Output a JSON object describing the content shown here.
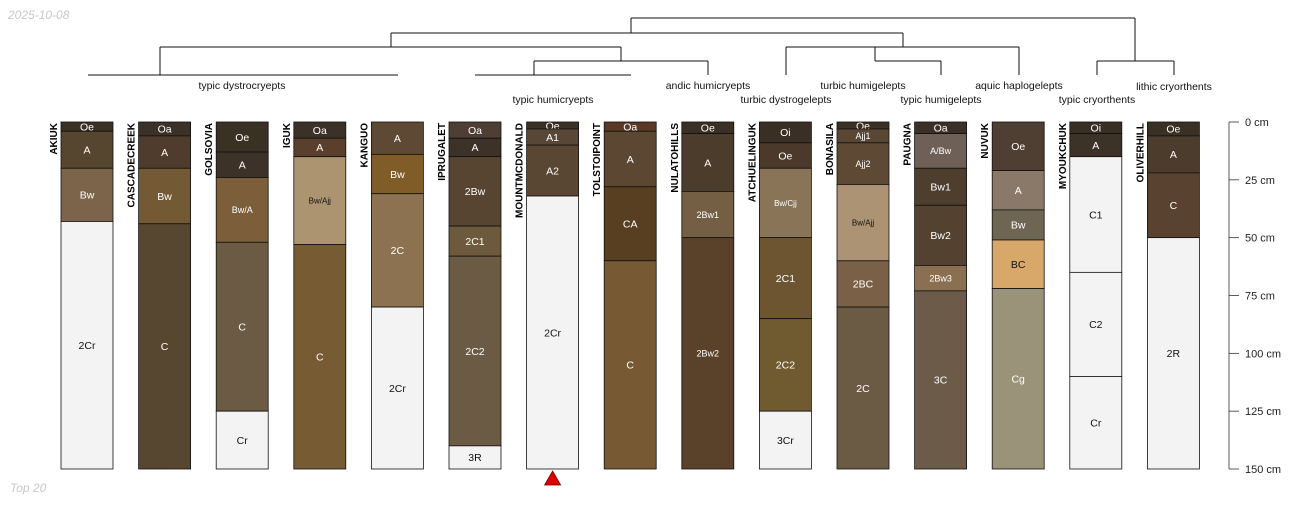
{
  "header": {
    "date": "2025-10-08"
  },
  "footer": {
    "label": "Top 20"
  },
  "chart_data": {
    "type": "soil-profile-sketch",
    "depth_axis": {
      "unit": "cm",
      "range": [
        0,
        150
      ],
      "ticks": [
        0,
        25,
        50,
        75,
        100,
        125,
        150
      ],
      "tick_labels": [
        "0 cm",
        "25 cm",
        "50 cm",
        "75 cm",
        "100 cm",
        "125 cm",
        "150 cm"
      ]
    },
    "profiles": [
      {
        "name": "AKIUK",
        "horizons": [
          {
            "name": "Oe",
            "top": 0,
            "bottom": 4,
            "color": "#3a3024"
          },
          {
            "name": "A",
            "top": 4,
            "bottom": 20,
            "color": "#56462f"
          },
          {
            "name": "Bw",
            "top": 20,
            "bottom": 43,
            "color": "#7b644a"
          },
          {
            "name": "2Cr",
            "top": 43,
            "bottom": 150,
            "color": "#f3f3f3"
          }
        ]
      },
      {
        "name": "CASCADECREEK",
        "horizons": [
          {
            "name": "Oa",
            "top": 0,
            "bottom": 6,
            "color": "#3b3127"
          },
          {
            "name": "A",
            "top": 6,
            "bottom": 20,
            "color": "#4f3c2c"
          },
          {
            "name": "Bw",
            "top": 20,
            "bottom": 44,
            "color": "#735a34"
          },
          {
            "name": "C",
            "top": 44,
            "bottom": 150,
            "color": "#574730"
          }
        ]
      },
      {
        "name": "GOLSOVIA",
        "horizons": [
          {
            "name": "Oe",
            "top": 0,
            "bottom": 13,
            "color": "#3a3024"
          },
          {
            "name": "A",
            "top": 13,
            "bottom": 24,
            "color": "#3d3228"
          },
          {
            "name": "Bw/A",
            "top": 24,
            "bottom": 52,
            "color": "#7c5e3a"
          },
          {
            "name": "C",
            "top": 52,
            "bottom": 125,
            "color": "#6b5b45"
          },
          {
            "name": "Cr",
            "top": 125,
            "bottom": 150,
            "color": "#f3f3f3"
          }
        ]
      },
      {
        "name": "IGUK",
        "horizons": [
          {
            "name": "Oa",
            "top": 0,
            "bottom": 7,
            "color": "#3b3127"
          },
          {
            "name": "A",
            "top": 7,
            "bottom": 15,
            "color": "#5a3f2d"
          },
          {
            "name": "Bw/Ajj",
            "top": 15,
            "bottom": 53,
            "color": "#ad9470"
          },
          {
            "name": "C",
            "top": 53,
            "bottom": 150,
            "color": "#775b33"
          }
        ]
      },
      {
        "name": "KANGUO",
        "horizons": [
          {
            "name": "A",
            "top": 0,
            "bottom": 14,
            "color": "#5e4a34"
          },
          {
            "name": "Bw",
            "top": 14,
            "bottom": 31,
            "color": "#7f5c28"
          },
          {
            "name": "2C",
            "top": 31,
            "bottom": 80,
            "color": "#8c7250"
          },
          {
            "name": "2Cr",
            "top": 80,
            "bottom": 150,
            "color": "#f3f3f3"
          }
        ]
      },
      {
        "name": "IPRUGALET",
        "horizons": [
          {
            "name": "Oa",
            "top": 0,
            "bottom": 7,
            "color": "#4f3e33"
          },
          {
            "name": "A",
            "top": 7,
            "bottom": 15,
            "color": "#3d3228"
          },
          {
            "name": "2Bw",
            "top": 15,
            "bottom": 45,
            "color": "#574532"
          },
          {
            "name": "2C1",
            "top": 45,
            "bottom": 58,
            "color": "#6d5a3c"
          },
          {
            "name": "2C2",
            "top": 58,
            "bottom": 140,
            "color": "#6b5b45"
          },
          {
            "name": "3R",
            "top": 140,
            "bottom": 150,
            "color": "#f3f3f3"
          }
        ]
      },
      {
        "name": "MOUNTMCDONALD",
        "horizons": [
          {
            "name": "Oe",
            "top": 0,
            "bottom": 3,
            "color": "#3a3024"
          },
          {
            "name": "A1",
            "top": 3,
            "bottom": 10,
            "color": "#584736"
          },
          {
            "name": "A2",
            "top": 10,
            "bottom": 32,
            "color": "#5a4733"
          },
          {
            "name": "2Cr",
            "top": 32,
            "bottom": 150,
            "color": "#f3f3f3"
          }
        ]
      },
      {
        "name": "TOLSTOIPOINT",
        "horizons": [
          {
            "name": "Oa",
            "top": 0,
            "bottom": 4,
            "color": "#5a3a26"
          },
          {
            "name": "A",
            "top": 4,
            "bottom": 28,
            "color": "#5c4832"
          },
          {
            "name": "CA",
            "top": 28,
            "bottom": 60,
            "color": "#593f22"
          },
          {
            "name": "C",
            "top": 60,
            "bottom": 150,
            "color": "#775a34"
          }
        ]
      },
      {
        "name": "NULATOHILLS",
        "horizons": [
          {
            "name": "Oe",
            "top": 0,
            "bottom": 5,
            "color": "#3a3024"
          },
          {
            "name": "A",
            "top": 5,
            "bottom": 30,
            "color": "#4c3c2c"
          },
          {
            "name": "2Bw1",
            "top": 30,
            "bottom": 50,
            "color": "#745e44"
          },
          {
            "name": "2Bw2",
            "top": 50,
            "bottom": 150,
            "color": "#5a412a"
          }
        ]
      },
      {
        "name": "ATCHUELINGUK",
        "horizons": [
          {
            "name": "Oi",
            "top": 0,
            "bottom": 9,
            "color": "#3a2f24"
          },
          {
            "name": "Oe",
            "top": 9,
            "bottom": 20,
            "color": "#4b3a2c"
          },
          {
            "name": "Bw/Cjj",
            "top": 20,
            "bottom": 50,
            "color": "#8a7458"
          },
          {
            "name": "2C1",
            "top": 50,
            "bottom": 85,
            "color": "#6c5530"
          },
          {
            "name": "2C2",
            "top": 85,
            "bottom": 125,
            "color": "#705a30"
          },
          {
            "name": "3Cr",
            "top": 125,
            "bottom": 150,
            "color": "#f3f3f3"
          }
        ]
      },
      {
        "name": "BONASILA",
        "horizons": [
          {
            "name": "Oe",
            "top": 0,
            "bottom": 3,
            "color": "#3a3024"
          },
          {
            "name": "Ajj1",
            "top": 3,
            "bottom": 9,
            "color": "#5a4733"
          },
          {
            "name": "Ajj2",
            "top": 9,
            "bottom": 27,
            "color": "#5e4a34"
          },
          {
            "name": "Bw/Ajj",
            "top": 27,
            "bottom": 60,
            "color": "#ab9373"
          },
          {
            "name": "2BC",
            "top": 60,
            "bottom": 80,
            "color": "#7a6046"
          },
          {
            "name": "2C",
            "top": 80,
            "bottom": 150,
            "color": "#6b5b45"
          }
        ]
      },
      {
        "name": "PAUGNA",
        "horizons": [
          {
            "name": "Oa",
            "top": 0,
            "bottom": 5,
            "color": "#3b3127"
          },
          {
            "name": "A/Bw",
            "top": 5,
            "bottom": 20,
            "color": "#6e6056"
          },
          {
            "name": "Bw1",
            "top": 20,
            "bottom": 36,
            "color": "#4e3e2e"
          },
          {
            "name": "Bw2",
            "top": 36,
            "bottom": 62,
            "color": "#53422f"
          },
          {
            "name": "2Bw3",
            "top": 62,
            "bottom": 73,
            "color": "#8a7050"
          },
          {
            "name": "3C",
            "top": 73,
            "bottom": 150,
            "color": "#6b5b48"
          }
        ]
      },
      {
        "name": "NUVUK",
        "horizons": [
          {
            "name": "Oe",
            "top": 0,
            "bottom": 21,
            "color": "#4f3e32"
          },
          {
            "name": "A",
            "top": 21,
            "bottom": 38,
            "color": "#8a7868"
          },
          {
            "name": "Bw",
            "top": 38,
            "bottom": 51,
            "color": "#6e6552"
          },
          {
            "name": "BC",
            "top": 51,
            "bottom": 72,
            "color": "#d8a86a"
          },
          {
            "name": "Cg",
            "top": 72,
            "bottom": 150,
            "color": "#9a9379"
          }
        ]
      },
      {
        "name": "MYOUKCHUK",
        "horizons": [
          {
            "name": "Oi",
            "top": 0,
            "bottom": 5,
            "color": "#3a2f24"
          },
          {
            "name": "A",
            "top": 5,
            "bottom": 15,
            "color": "#3d3228"
          },
          {
            "name": "C1",
            "top": 15,
            "bottom": 65,
            "color": "#f3f3f3"
          },
          {
            "name": "C2",
            "top": 65,
            "bottom": 110,
            "color": "#f3f3f3"
          },
          {
            "name": "Cr",
            "top": 110,
            "bottom": 150,
            "color": "#f3f3f3"
          }
        ]
      },
      {
        "name": "OLIVERHILL",
        "horizons": [
          {
            "name": "Oe",
            "top": 0,
            "bottom": 6,
            "color": "#3a3024"
          },
          {
            "name": "A",
            "top": 6,
            "bottom": 22,
            "color": "#4c3c2c"
          },
          {
            "name": "C",
            "top": 22,
            "bottom": 50,
            "color": "#5a4230"
          },
          {
            "name": "2R",
            "top": 50,
            "bottom": 150,
            "color": "#f3f3f3"
          }
        ]
      }
    ],
    "taxa": [
      "typic dystrocryepts",
      "typic humicryepts",
      "andic humicryepts",
      "turbic dystrogelepts",
      "turbic humigelepts",
      "typic humigelepts",
      "aquic haplogelepts",
      "typic cryorthents",
      "lithic cryorthents"
    ],
    "marked_profile": "MOUNTMCDONALD"
  }
}
